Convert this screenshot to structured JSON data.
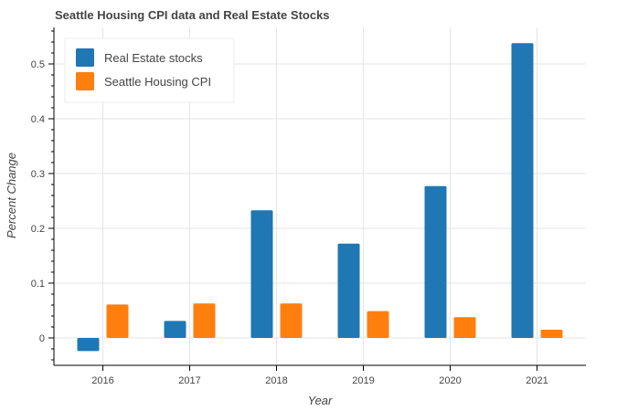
{
  "chart_data": {
    "type": "bar",
    "title": "Seattle Housing CPI data and Real Estate Stocks",
    "xlabel": "Year",
    "ylabel": "Percent Change",
    "categories": [
      "2016",
      "2017",
      "2018",
      "2019",
      "2020",
      "2021"
    ],
    "series": [
      {
        "name": "Real Estate stocks",
        "color": "#1f77b4",
        "values": [
          -0.024,
          0.031,
          0.233,
          0.172,
          0.277,
          0.538
        ]
      },
      {
        "name": "Seattle Housing CPI",
        "color": "#ff7f0e",
        "values": [
          0.061,
          0.063,
          0.063,
          0.049,
          0.038,
          0.015
        ]
      }
    ],
    "ylim": [
      -0.05,
      0.56
    ],
    "yticks": [
      0,
      0.1,
      0.2,
      0.3,
      0.4,
      0.5
    ],
    "ytick_labels": [
      "0",
      "0.1",
      "0.2",
      "0.3",
      "0.4",
      "0.5"
    ],
    "grid": true,
    "legend_position": "top-left"
  }
}
